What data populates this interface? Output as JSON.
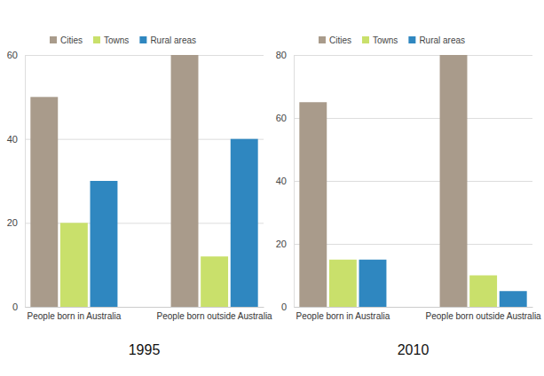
{
  "chart_data": [
    {
      "type": "bar",
      "title": "1995",
      "categories": [
        "People born in Australia",
        "People born outside Australia"
      ],
      "series": [
        {
          "name": "Cities",
          "color": "#a99b8b",
          "values": [
            50,
            60
          ]
        },
        {
          "name": "Towns",
          "color": "#c9e06b",
          "values": [
            20,
            12
          ]
        },
        {
          "name": "Rural areas",
          "color": "#2f87c0",
          "values": [
            30,
            40
          ]
        }
      ],
      "ylim": [
        0,
        60
      ],
      "yticks": [
        0,
        20,
        40,
        60
      ],
      "grid": true,
      "legend": "top"
    },
    {
      "type": "bar",
      "title": "2010",
      "categories": [
        "People born in Australia",
        "People born outside Australia"
      ],
      "series": [
        {
          "name": "Cities",
          "color": "#a99b8b",
          "values": [
            65,
            80
          ]
        },
        {
          "name": "Towns",
          "color": "#c9e06b",
          "values": [
            15,
            10
          ]
        },
        {
          "name": "Rural areas",
          "color": "#2f87c0",
          "values": [
            15,
            5
          ]
        }
      ],
      "ylim": [
        0,
        80
      ],
      "yticks": [
        0,
        20,
        40,
        60,
        80
      ],
      "grid": true,
      "legend": "top"
    }
  ]
}
